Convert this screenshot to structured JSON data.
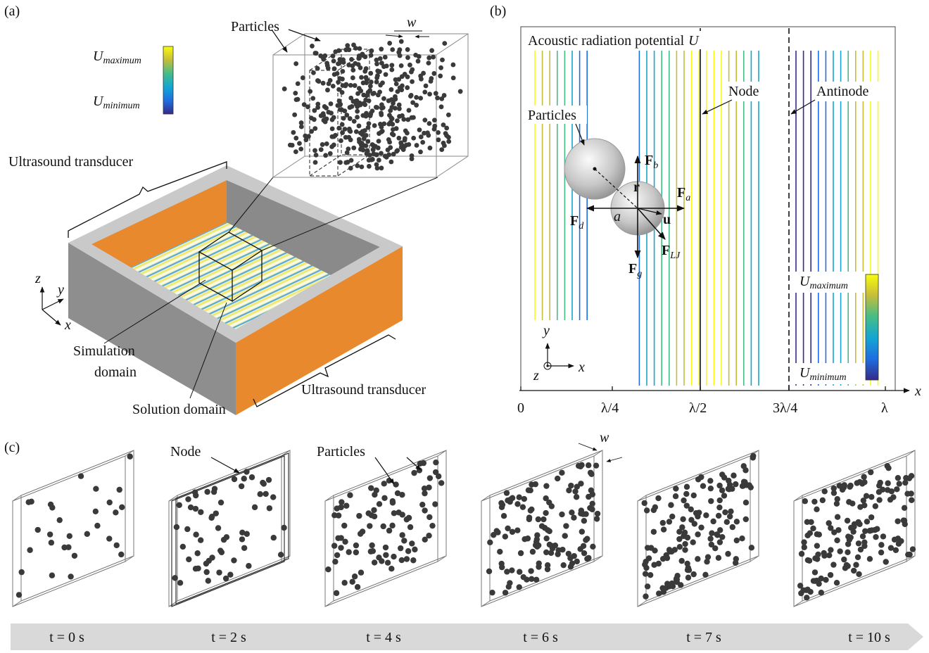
{
  "panel_a": {
    "label": "(a)",
    "particles": "Particles",
    "width": "w",
    "colorbar": {
      "max": {
        "symbol": "U",
        "subscript": "maximum"
      },
      "min": {
        "symbol": "U",
        "subscript": "minimum"
      }
    },
    "transducer_top": "Ultrasound transducer",
    "transducer_bottom": "Ultrasound transducer",
    "axes": {
      "z": "z",
      "y": "y",
      "x": "x"
    },
    "simulation_domain": [
      "Simulation",
      "domain"
    ],
    "solution_domain": "Solution domain"
  },
  "panel_b": {
    "label": "(b)",
    "title": {
      "text": "Acoustic radiation  potential",
      "symbol": "U"
    },
    "node": "Node",
    "antinode": "Antinode",
    "particles": "Particles",
    "forces": {
      "buoyancy": {
        "symbol": "F",
        "subscript": "b"
      },
      "acoustic": {
        "symbol": "F",
        "subscript": "a"
      },
      "drag": {
        "symbol": "F",
        "subscript": "d"
      },
      "gravity": {
        "symbol": "F",
        "subscript": "g"
      },
      "lennard_jones": {
        "symbol": "F",
        "subscript": "LJ"
      }
    },
    "position": "r",
    "radius": "a",
    "velocity": "u",
    "colorbar": {
      "max": {
        "symbol": "U",
        "subscript": "maximum"
      },
      "min": {
        "symbol": "U",
        "subscript": "minimum"
      }
    },
    "x_ticks": [
      "0",
      "λ/4",
      "λ/2",
      "3λ/4",
      "λ"
    ],
    "x_axis": "x",
    "axes": {
      "y": "y",
      "z": "z",
      "x": "x"
    }
  },
  "panel_c": {
    "label": "(c)",
    "node": "Node",
    "particles": "Particles",
    "width": "w",
    "times": [
      "t = 0 s",
      "t = 2 s",
      "t = 4 s",
      "t = 6 s",
      "t = 7 s",
      "t = 10 s"
    ]
  }
}
